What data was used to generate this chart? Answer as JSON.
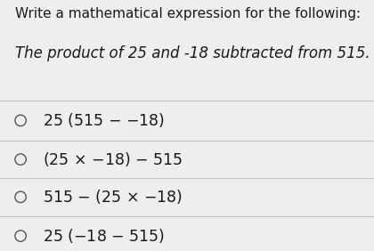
{
  "title": "Write a mathematical expression for the following:",
  "subtitle_text": "The product of 25 and -18 subtracted from 515.",
  "background_color": "#f0eeec",
  "text_color": "#1a1a1a",
  "title_fontsize": 11.0,
  "subtitle_fontsize": 12.0,
  "option_fontsize": 12.5,
  "divider_color": "#c8c4c0",
  "circle_color": "#555555"
}
